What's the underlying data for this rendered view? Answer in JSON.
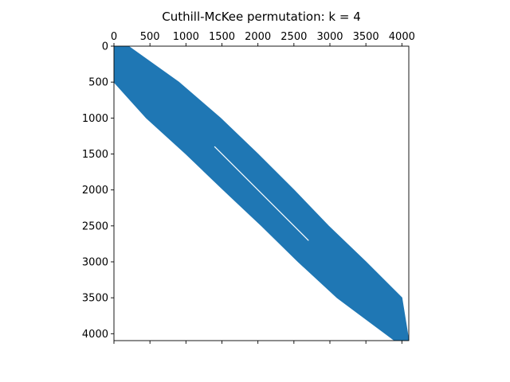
{
  "chart_data": {
    "type": "heatmap",
    "subtype": "sparsity-pattern (spy plot)",
    "title": "Cuthill-McKee permutation: k = 4",
    "xlabel": "",
    "ylabel": "",
    "n": 4096,
    "xlim": [
      0,
      4096
    ],
    "ylim": [
      4096,
      0
    ],
    "x_axis_position": "top",
    "x_ticks": [
      0,
      500,
      1000,
      1500,
      2000,
      2500,
      3000,
      3500,
      4000
    ],
    "x_tick_labels": [
      "0",
      "500",
      "1000",
      "1500",
      "2000",
      "2500",
      "3000",
      "3500",
      "4000"
    ],
    "y_ticks": [
      0,
      500,
      1000,
      1500,
      2000,
      2500,
      3000,
      3500,
      4000
    ],
    "y_tick_labels": [
      "0",
      "500",
      "1000",
      "1500",
      "2000",
      "2500",
      "3000",
      "3500",
      "4000"
    ],
    "grid": false,
    "legend": "none",
    "marker_color": "#1f77b4",
    "band": {
      "description": "nonzeros concentrated in a band around the main diagonal",
      "rows": [
        0,
        500,
        1000,
        1500,
        2000,
        2500,
        3000,
        3500,
        4096
      ],
      "upper_col_bound": [
        200,
        900,
        1480,
        2000,
        2500,
        2980,
        3500,
        4000,
        4096
      ],
      "lower_col_bound": [
        0,
        0,
        450,
        1000,
        1520,
        2050,
        2560,
        3100,
        3900
      ]
    },
    "inner_gap": {
      "description": "thin empty stripe inside the band near the centre",
      "start": [
        1400,
        1400
      ],
      "end": [
        2700,
        2700
      ]
    }
  }
}
